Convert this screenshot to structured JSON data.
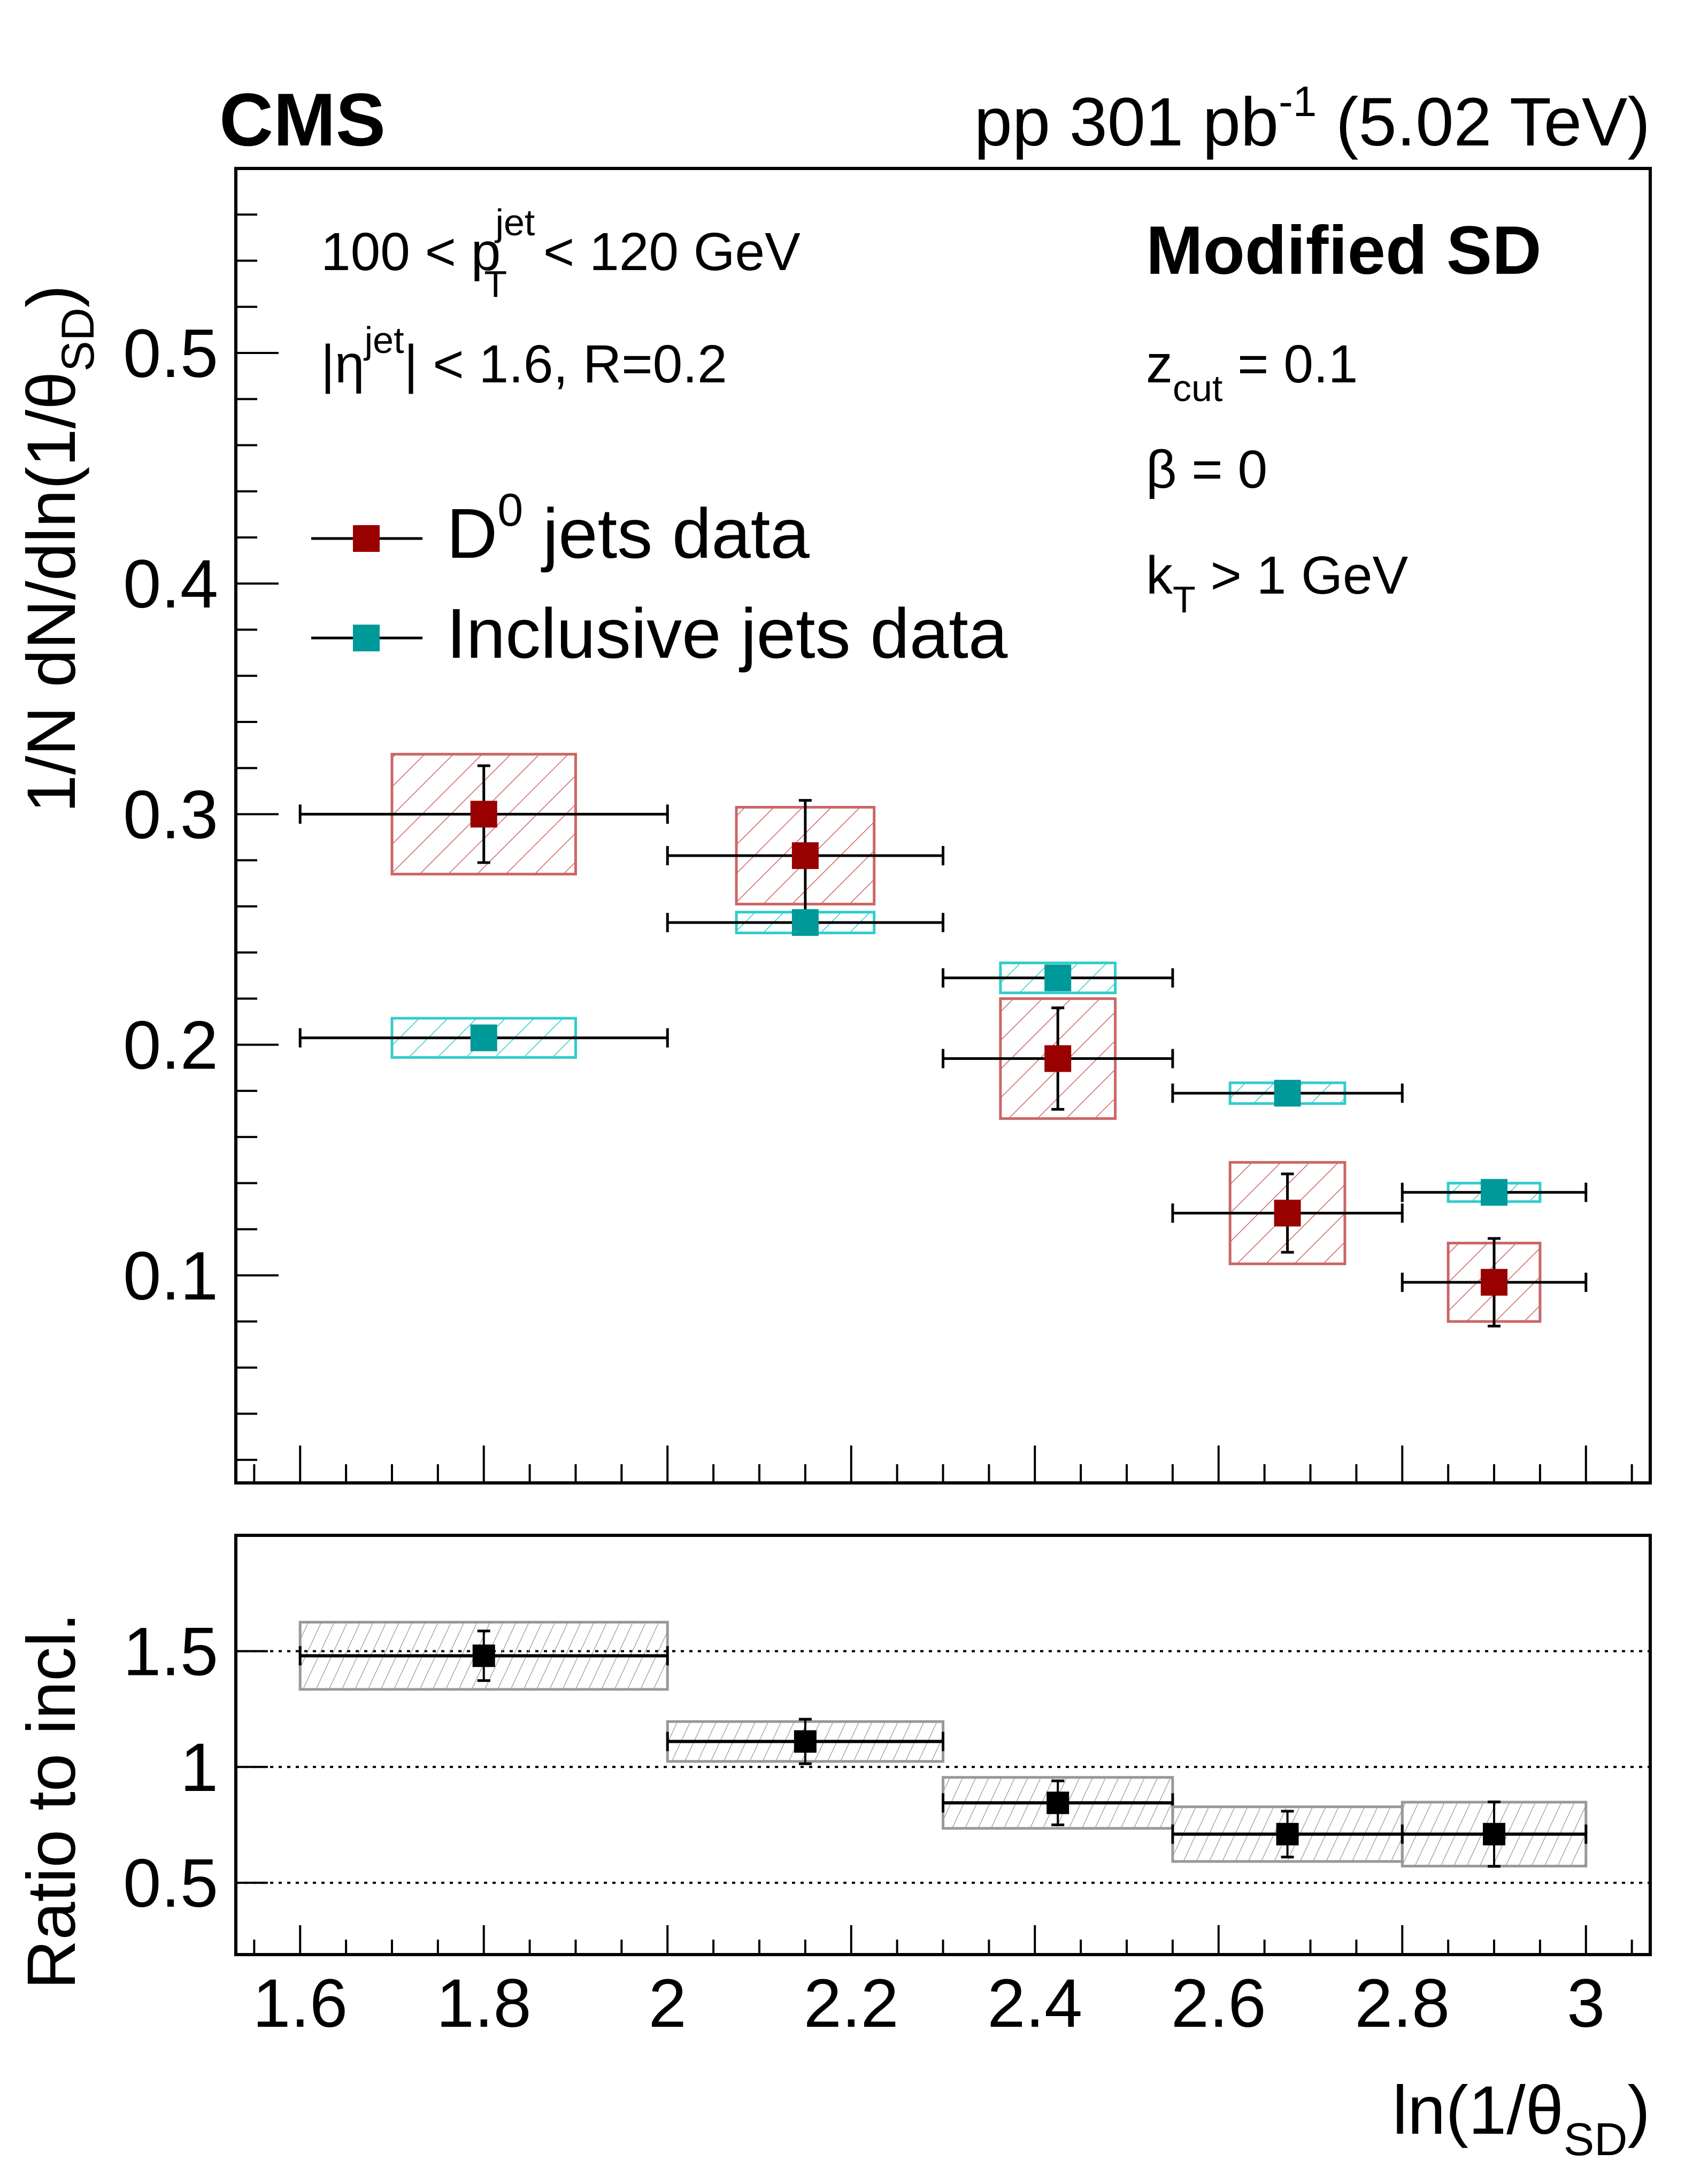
{
  "header": {
    "experiment": "CMS",
    "lumi_label_main": "pp 301 pb",
    "lumi_label_sup": "-1",
    "lumi_label_energy": " (5.02 TeV)"
  },
  "annotations": {
    "pt_range": {
      "prefix": "100 < p",
      "sup": "jet",
      "sub": "T",
      "suffix": " < 120 GeV"
    },
    "eta_range": {
      "prefix": "|η",
      "sup": "jet",
      "suffix": "| < 1.6, R=0.2"
    },
    "grooming_title": "Modified SD",
    "zcut": {
      "base": "z",
      "sub": "cut",
      "suffix": " = 0.1"
    },
    "beta": "β = 0",
    "kt": {
      "base": "k",
      "sub": "T",
      "suffix": " > 1 GeV"
    }
  },
  "colors": {
    "d0_marker": "#990000",
    "d0_sys": "#cc6666",
    "incl_marker": "#009999",
    "incl_sys": "#33cccc",
    "ratio_marker": "#000000",
    "ratio_sys": "#999999"
  },
  "chart_data": [
    {
      "type": "scatter",
      "panel": "main",
      "title": "",
      "xlabel": "ln(1/θSD)",
      "ylabel": "1/N dN/dln(1/θSD)",
      "xlim": [
        1.53,
        3.07
      ],
      "ylim": [
        0.01,
        0.58
      ],
      "yticks": [
        0.1,
        0.2,
        0.3,
        0.4,
        0.5
      ],
      "ytick_labels": [
        "0.1",
        "0.2",
        "0.3",
        "0.4",
        "0.5"
      ],
      "xticks": [
        1.6,
        1.8,
        2.0,
        2.2,
        2.4,
        2.6,
        2.8,
        3.0
      ],
      "legend": {
        "placement": "top-left",
        "entries": [
          {
            "label_base": "D",
            "label_sup": "0",
            "label_rest": " jets data",
            "series": "D0 jets data"
          },
          {
            "label_base": "Inclusive jets data",
            "label_sup": "",
            "label_rest": "",
            "series": "Inclusive jets data"
          }
        ]
      },
      "bins": [
        [
          1.6,
          2.0
        ],
        [
          2.0,
          2.3
        ],
        [
          2.3,
          2.55
        ],
        [
          2.55,
          2.8
        ],
        [
          2.8,
          3.0
        ]
      ],
      "x": [
        1.8,
        2.15,
        2.425,
        2.675,
        2.9
      ],
      "series": [
        {
          "name": "D0 jets data",
          "values": [
            0.3,
            0.282,
            0.194,
            0.127,
            0.097
          ],
          "stat_err": [
            0.021,
            0.024,
            0.022,
            0.017,
            0.019
          ],
          "sys_err": [
            0.026,
            0.021,
            0.026,
            0.022,
            0.017
          ]
        },
        {
          "name": "Inclusive jets data",
          "values": [
            0.203,
            0.253,
            0.229,
            0.179,
            0.136
          ],
          "stat_err": [
            0.001,
            0.001,
            0.001,
            0.001,
            0.001
          ],
          "sys_err": [
            0.0085,
            0.0045,
            0.0065,
            0.0045,
            0.004
          ]
        }
      ]
    },
    {
      "type": "scatter",
      "panel": "ratio",
      "xlabel": "ln(1/θSD)",
      "ylabel": "Ratio to incl.",
      "xlim": [
        1.53,
        3.07
      ],
      "ylim": [
        0.19,
        2.0
      ],
      "yticks": [
        0.5,
        1.0,
        1.5
      ],
      "ytick_labels": [
        "0.5",
        "1",
        "1.5"
      ],
      "reference_lines": [
        0.5,
        1.0,
        1.5
      ],
      "xticks": [
        1.6,
        1.8,
        2.0,
        2.2,
        2.4,
        2.6,
        2.8,
        3.0
      ],
      "xtick_labels": [
        "1.6",
        "1.8",
        "2",
        "2.2",
        "2.4",
        "2.6",
        "2.8",
        "3"
      ],
      "bins": [
        [
          1.6,
          2.0
        ],
        [
          2.0,
          2.3
        ],
        [
          2.3,
          2.55
        ],
        [
          2.55,
          2.8
        ],
        [
          2.8,
          3.0
        ]
      ],
      "x": [
        1.8,
        2.15,
        2.425,
        2.675,
        2.9
      ],
      "series": [
        {
          "name": "D0 / inclusive",
          "values": [
            1.48,
            1.11,
            0.845,
            0.71,
            0.71
          ],
          "stat_err": [
            0.107,
            0.096,
            0.095,
            0.099,
            0.139
          ],
          "sys_err": [
            0.145,
            0.086,
            0.11,
            0.118,
            0.138
          ]
        }
      ]
    }
  ],
  "axis_titles": {
    "main_y": {
      "base": "1/N dN/dln(1/θ",
      "sub": "SD",
      "suffix": ")"
    },
    "ratio_y": "Ratio to incl.",
    "x": {
      "base": "ln(1/θ",
      "sub": "SD",
      "suffix": ")"
    }
  }
}
